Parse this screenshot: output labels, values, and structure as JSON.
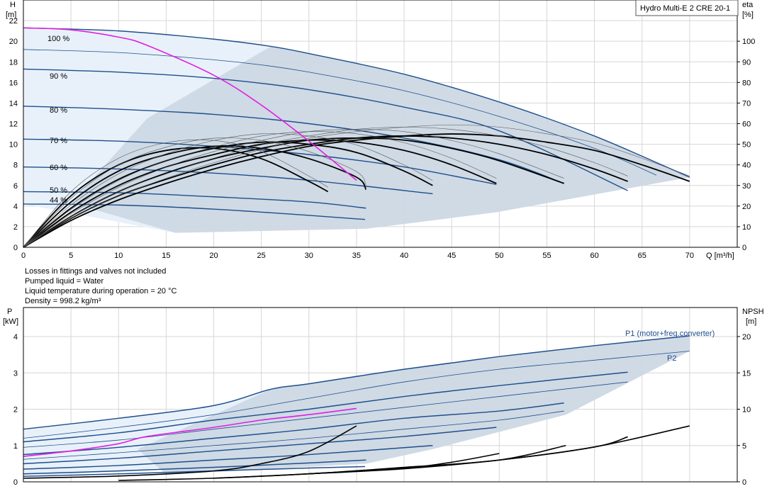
{
  "title": "Hydro Multi-E 2 CRE 20-1",
  "notes": [
    "Losses in fittings and valves not included",
    "Pumped liquid = Water",
    "Liquid temperature during operation = 20 °C",
    "Density = 998.2 kg/m³"
  ],
  "colors": {
    "curve": "#1f4e8c",
    "magenta": "#e020e0",
    "area_light": "#e8f1fa",
    "area_dark": "#ccd8e4",
    "efficiency": "#000000",
    "grid": "#d6d6d6"
  },
  "chart_data": [
    {
      "type": "line",
      "name": "head",
      "xlabel": "Q [m³/h]",
      "ylabel_left": "H\n[m]",
      "ylabel_right": "eta\n[%]",
      "xlim": [
        0,
        75
      ],
      "ylim": [
        0,
        24
      ],
      "ylim_right": [
        0,
        120
      ],
      "x_ticks": [
        0,
        5,
        10,
        15,
        20,
        25,
        30,
        35,
        40,
        45,
        50,
        55,
        60,
        65,
        70
      ],
      "y_ticks": [
        0,
        2,
        4,
        6,
        8,
        10,
        12,
        14,
        16,
        18,
        20,
        22
      ],
      "y_ticks_right": [
        0,
        10,
        20,
        30,
        40,
        50,
        60,
        70,
        80,
        90,
        100
      ],
      "speed_labels": [
        "100 %",
        "90 %",
        "80 %",
        "70 %",
        "60 %",
        "50 %",
        "44 %"
      ],
      "head_curves": [
        {
          "speed": 1.0,
          "x": [
            0,
            10,
            20,
            26,
            30,
            40,
            50,
            60,
            70
          ],
          "y": [
            21.3,
            21.0,
            20.2,
            19.5,
            18.8,
            16.8,
            14.1,
            10.8,
            6.8
          ]
        },
        {
          "speed": 0.95,
          "x": [
            0,
            10,
            20,
            25,
            30,
            40,
            50,
            60,
            66.5
          ],
          "y": [
            19.2,
            18.9,
            18.2,
            17.7,
            17.0,
            15.2,
            12.7,
            9.6,
            7.0
          ]
        },
        {
          "speed": 0.9,
          "x": [
            0,
            10,
            20,
            30,
            40,
            50,
            63.5
          ],
          "y": [
            17.3,
            17.0,
            16.4,
            15.3,
            13.6,
            11.3,
            5.5
          ]
        },
        {
          "speed": 0.8,
          "x": [
            0,
            10,
            20,
            30,
            40,
            50,
            56.8
          ],
          "y": [
            13.7,
            13.4,
            12.9,
            12.0,
            10.6,
            8.5,
            6.2
          ]
        },
        {
          "speed": 0.7,
          "x": [
            0,
            10,
            20,
            30,
            40,
            49.7
          ],
          "y": [
            10.5,
            10.3,
            9.8,
            9.0,
            7.8,
            6.1
          ]
        },
        {
          "speed": 0.6,
          "x": [
            0,
            10,
            20,
            30,
            43
          ],
          "y": [
            7.8,
            7.6,
            7.2,
            6.5,
            5.2
          ]
        },
        {
          "speed": 0.5,
          "x": [
            0,
            10,
            20,
            30,
            36
          ],
          "y": [
            5.4,
            5.3,
            4.9,
            4.4,
            3.8
          ]
        },
        {
          "speed": 0.44,
          "x": [
            0,
            10,
            20,
            30,
            35.9
          ],
          "y": [
            4.2,
            4.1,
            3.7,
            3.1,
            2.7
          ]
        }
      ],
      "magenta_curve": {
        "x": [
          0,
          5,
          10,
          13,
          20,
          25,
          30,
          35
        ],
        "y": [
          21.3,
          21.1,
          20.4,
          19.6,
          16.7,
          13.8,
          10.3,
          6.5
        ]
      },
      "efficiency_curves": [
        {
          "x": [
            0,
            5,
            10,
            15,
            20,
            25,
            30,
            32
          ],
          "y": [
            0,
            25,
            40,
            47,
            48,
            43,
            32,
            27
          ]
        },
        {
          "x": [
            0,
            5,
            10,
            15,
            20,
            25,
            30,
            35,
            36
          ],
          "y": [
            0,
            22,
            37,
            45,
            49,
            48,
            43,
            34,
            28
          ]
        },
        {
          "x": [
            0,
            5,
            10,
            15,
            20,
            25,
            30,
            35,
            40,
            43
          ],
          "y": [
            0,
            19,
            33,
            42,
            48,
            51,
            50,
            46,
            37,
            30
          ]
        },
        {
          "x": [
            0,
            5,
            10,
            15,
            20,
            25,
            30,
            35,
            40,
            45,
            49.7
          ],
          "y": [
            0,
            17,
            30,
            39,
            45,
            50,
            52,
            51,
            47,
            40,
            31
          ]
        },
        {
          "x": [
            0,
            5,
            10,
            15,
            20,
            25,
            30,
            35,
            40,
            45,
            50,
            56.8
          ],
          "y": [
            0,
            15,
            27,
            36,
            43,
            48,
            52,
            53,
            52,
            48,
            42,
            31
          ]
        },
        {
          "x": [
            0,
            5,
            10,
            15,
            20,
            25,
            30,
            35,
            40,
            45,
            50,
            55,
            60,
            63.5
          ],
          "y": [
            0,
            14,
            25,
            33,
            40,
            46,
            50,
            53,
            54,
            53,
            50,
            45,
            38,
            32
          ]
        },
        {
          "x": [
            0,
            5,
            10,
            15,
            20,
            25,
            30,
            35,
            40,
            45,
            50,
            55,
            60,
            65,
            70
          ],
          "y": [
            0,
            13,
            23,
            31,
            38,
            44,
            49,
            52,
            54,
            55,
            54,
            51,
            47,
            40,
            32
          ]
        }
      ]
    },
    {
      "type": "line",
      "name": "power",
      "xlabel": "",
      "ylabel_left": "P\n[kW]",
      "ylabel_right": "NPSH\n[m]",
      "xlim": [
        0,
        75
      ],
      "ylim": [
        0,
        4.8
      ],
      "ylim_right": [
        0,
        24
      ],
      "y_ticks": [
        0,
        1,
        2,
        3,
        4
      ],
      "y_ticks_right": [
        0,
        5,
        10,
        15,
        20
      ],
      "series_labels": [
        "P1 (motor+freq.converter)",
        "P2"
      ],
      "p1_curves": [
        {
          "x": [
            0,
            10,
            20,
            26,
            30,
            40,
            50,
            60,
            70
          ],
          "y": [
            1.45,
            1.75,
            2.1,
            2.55,
            2.7,
            3.1,
            3.45,
            3.75,
            4.02
          ]
        },
        {
          "x": [
            0,
            10,
            20,
            30,
            40,
            50,
            63.5
          ],
          "y": [
            1.1,
            1.35,
            1.7,
            2.0,
            2.35,
            2.65,
            3.02
          ]
        },
        {
          "x": [
            0,
            10,
            20,
            30,
            40,
            50,
            56.8
          ],
          "y": [
            0.75,
            0.95,
            1.2,
            1.45,
            1.75,
            1.95,
            2.17
          ]
        },
        {
          "x": [
            0,
            10,
            20,
            30,
            40,
            49.7
          ],
          "y": [
            0.5,
            0.65,
            0.85,
            1.05,
            1.25,
            1.5
          ]
        },
        {
          "x": [
            0,
            10,
            20,
            30,
            43
          ],
          "y": [
            0.35,
            0.45,
            0.6,
            0.75,
            1.0
          ]
        },
        {
          "x": [
            0,
            10,
            20,
            30,
            36
          ],
          "y": [
            0.22,
            0.3,
            0.4,
            0.52,
            0.6
          ]
        },
        {
          "x": [
            0,
            10,
            20,
            30,
            35.9
          ],
          "y": [
            0.15,
            0.22,
            0.3,
            0.38,
            0.42
          ]
        }
      ],
      "p2_curves": [
        {
          "x": [
            0,
            10,
            20,
            30,
            40,
            50,
            60,
            70
          ],
          "y": [
            1.2,
            1.5,
            1.85,
            2.3,
            2.75,
            3.1,
            3.35,
            3.6
          ]
        },
        {
          "x": [
            0,
            10,
            20,
            30,
            40,
            50,
            63.5
          ],
          "y": [
            0.95,
            1.15,
            1.45,
            1.75,
            2.05,
            2.35,
            2.75
          ]
        },
        {
          "x": [
            0,
            10,
            20,
            30,
            40,
            50,
            56.8
          ],
          "y": [
            0.62,
            0.8,
            1.0,
            1.2,
            1.45,
            1.7,
            1.95
          ]
        }
      ],
      "magenta_curve": {
        "x": [
          0,
          5,
          10,
          13,
          20,
          25,
          30,
          35
        ],
        "y": [
          0.7,
          0.85,
          1.05,
          1.25,
          1.5,
          1.7,
          1.85,
          2.02
        ]
      },
      "npsh_curves": [
        {
          "x": [
            0,
            10,
            20,
            25,
            30,
            35
          ],
          "y": [
            0.5,
            0.8,
            1.5,
            2.5,
            4.2,
            7.7
          ]
        },
        {
          "x": [
            10,
            20,
            30,
            40,
            45,
            50
          ],
          "y": [
            0.2,
            0.5,
            1.1,
            1.9,
            2.7,
            3.9
          ]
        },
        {
          "x": [
            20,
            30,
            40,
            50,
            57
          ],
          "y": [
            0.5,
            1.1,
            2.0,
            3.0,
            5.0
          ]
        },
        {
          "x": [
            30,
            40,
            50,
            60,
            63.5
          ],
          "y": [
            1.1,
            1.9,
            3.0,
            4.8,
            6.2
          ]
        },
        {
          "x": [
            30,
            40,
            50,
            60,
            70
          ],
          "y": [
            1.1,
            1.8,
            3.0,
            4.8,
            7.7
          ]
        }
      ]
    }
  ]
}
